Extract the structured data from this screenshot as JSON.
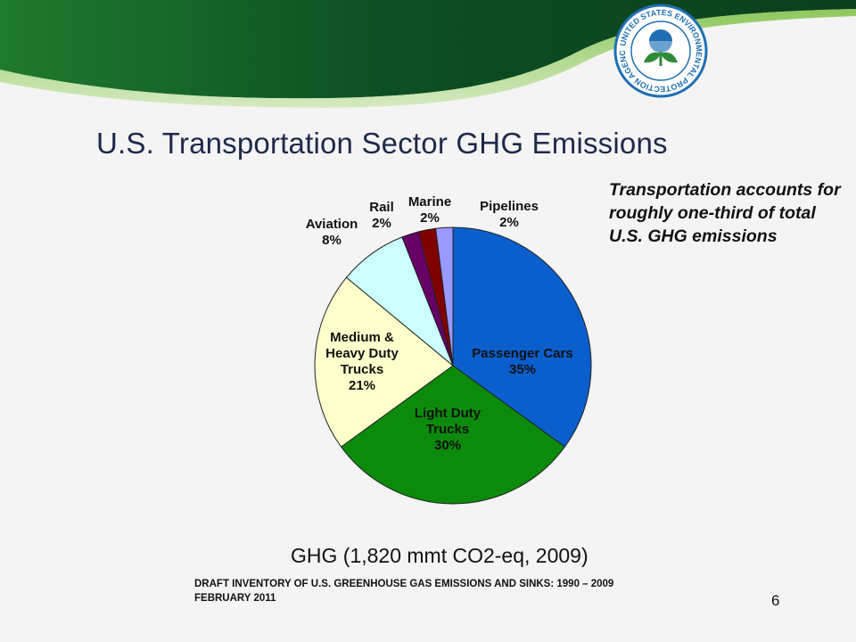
{
  "slide": {
    "title": "U.S. Transportation Sector GHG Emissions",
    "callout": "Transportation accounts for roughly one-third of total U.S. GHG emissions",
    "subtitle": "GHG (1,820 mmt CO2-eq, 2009)",
    "source_line1": "DRAFT INVENTORY OF U.S. GREENHOUSE GAS EMISSIONS AND SINKS: 1990 – 2009",
    "source_line2": "FEBRUARY 2011",
    "page_number": "6",
    "logo": {
      "ring_text": "UNITED STATES ENVIRONMENTAL PROTECTION AGENCY",
      "icon": "epa-seal-icon"
    }
  },
  "colors": {
    "header_dark": "#0d4f24",
    "header_light": "#3f9b2c",
    "title": "#1e2a4a",
    "seal_blue": "#1f6fb3"
  },
  "chart_data": {
    "type": "pie",
    "title": "",
    "slices": [
      {
        "label": "Passenger Cars",
        "value": 35,
        "display": "35%",
        "color": "#0a5fcc"
      },
      {
        "label": "Light Duty Trucks",
        "value": 30,
        "display": "30%",
        "color": "#0c8a0c"
      },
      {
        "label": "Medium & Heavy Duty Trucks",
        "value": 21,
        "display": "21%",
        "color": "#ffffcc"
      },
      {
        "label": "Aviation",
        "value": 8,
        "display": "8%",
        "color": "#ccffff"
      },
      {
        "label": "Rail",
        "value": 2,
        "display": "2%",
        "color": "#660066"
      },
      {
        "label": "Marine",
        "value": 2,
        "display": "2%",
        "color": "#800000"
      },
      {
        "label": "Pipelines",
        "value": 2,
        "display": "2%",
        "color": "#9999ff"
      }
    ]
  }
}
